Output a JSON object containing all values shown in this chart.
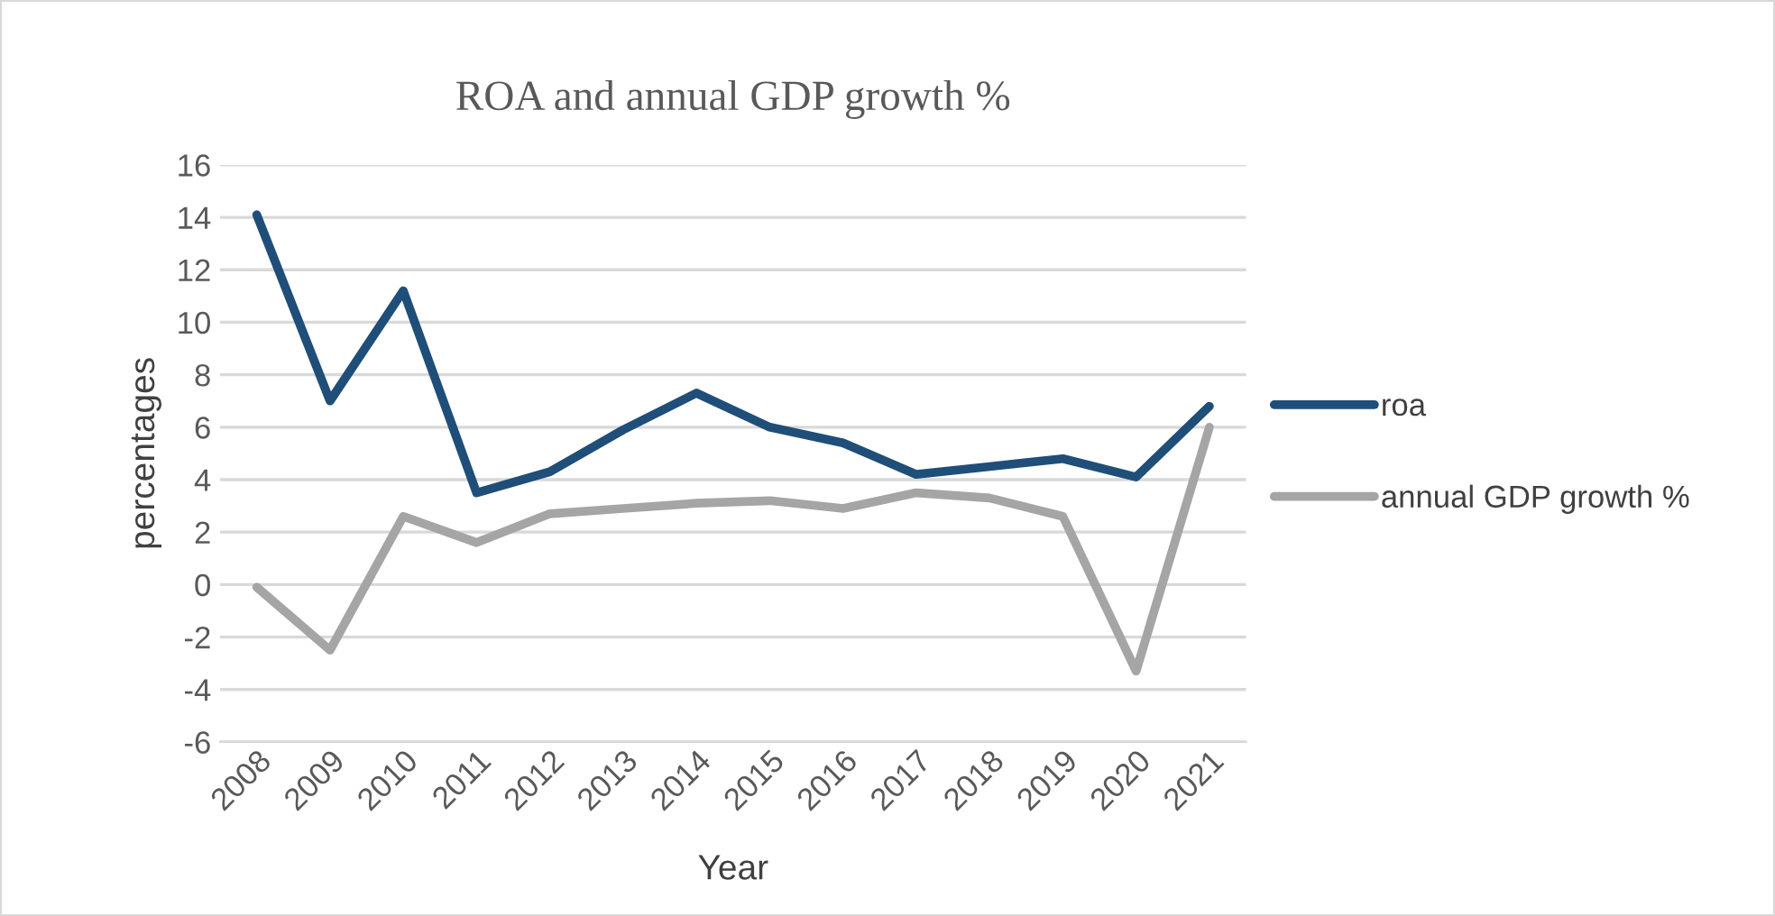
{
  "chart_data": {
    "type": "line",
    "title": "ROA and annual GDP growth %",
    "xlabel": "Year",
    "ylabel": "percentages",
    "categories": [
      "2008",
      "2009",
      "2010",
      "2011",
      "2012",
      "2013",
      "2014",
      "2015",
      "2016",
      "2017",
      "2018",
      "2019",
      "2020",
      "2021"
    ],
    "series": [
      {
        "name": "roa",
        "color": "#1f4e79",
        "values": [
          14.1,
          7.0,
          11.2,
          3.5,
          4.3,
          5.9,
          7.3,
          6.0,
          5.4,
          4.2,
          4.5,
          4.8,
          4.1,
          6.8
        ]
      },
      {
        "name": "annual GDP growth %",
        "color": "#a5a5a5",
        "values": [
          -0.1,
          -2.5,
          2.6,
          1.6,
          2.7,
          2.9,
          3.1,
          3.2,
          2.9,
          3.5,
          3.3,
          2.6,
          -3.3,
          6.0
        ]
      }
    ],
    "ylim": [
      -6,
      16
    ],
    "yticks": [
      -6,
      -4,
      -2,
      0,
      2,
      4,
      6,
      8,
      10,
      12,
      14,
      16
    ],
    "grid": "y",
    "legend": "right",
    "marker": "none",
    "line_style": "solid"
  }
}
